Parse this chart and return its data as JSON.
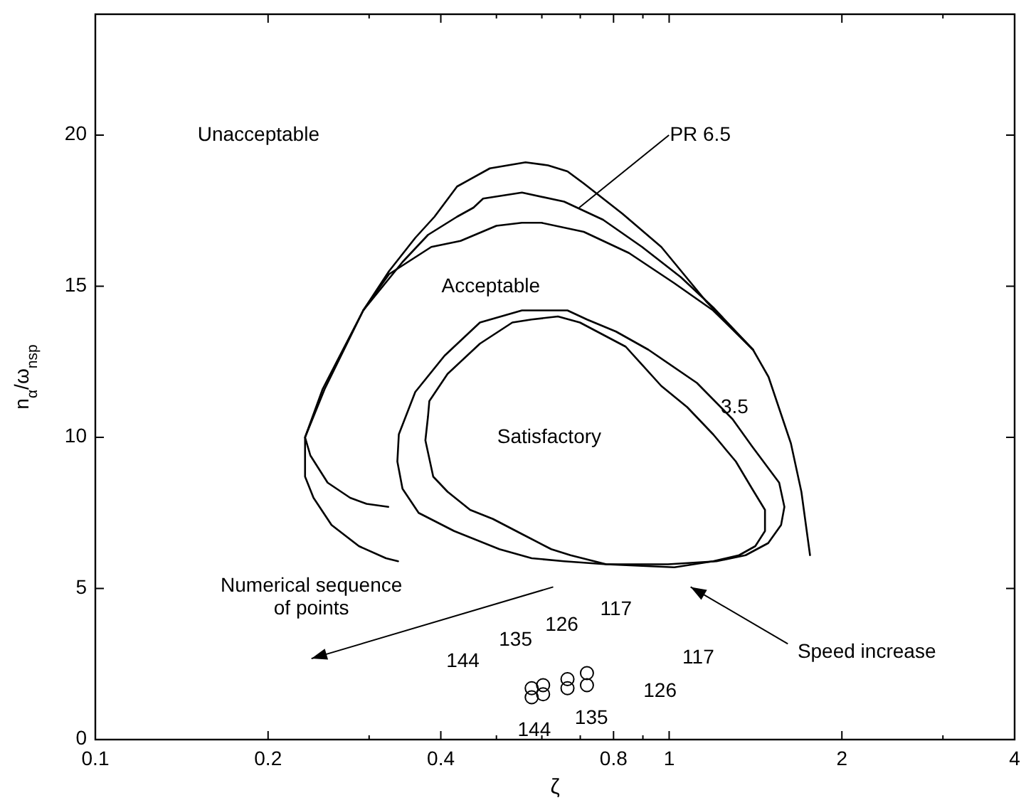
{
  "chart_data": {
    "type": "line",
    "xlabel": "ζ",
    "ylabel": "n$_{α}$/ω$_{n}$$_{sp}$",
    "log": "x",
    "xlim": [
      0.1,
      4
    ],
    "ylim": [
      0,
      24
    ],
    "xticks": [
      0.1,
      0.2,
      {
        "value": 0.3,
        "label": null
      },
      0.4,
      {
        "value": 0.5,
        "label": null
      },
      {
        "value": 0.6,
        "label": null
      },
      {
        "value": 0.7,
        "label": null
      },
      0.8,
      {
        "value": 0.9,
        "label": null
      },
      1,
      2,
      {
        "value": 3,
        "label": null
      },
      4
    ],
    "yticks": [
      0,
      5,
      10,
      15,
      20
    ],
    "grid": false,
    "series": [
      {
        "color": "#000000",
        "x": [
          0.337,
          0.321,
          0.288,
          0.258,
          0.24,
          0.232,
          0.232,
          0.249,
          0.293,
          0.325,
          0.361,
          0.39,
          0.427,
          0.487,
          0.562,
          0.615,
          0.665,
          0.71,
          0.829,
          0.969,
          1.16,
          1.4,
          1.49,
          1.63,
          1.7,
          1.76
        ],
        "values": [
          5.9,
          6.0,
          6.4,
          7.1,
          8.0,
          8.7,
          10.0,
          11.6,
          14.2,
          15.5,
          16.6,
          17.3,
          18.3,
          18.9,
          19.1,
          19.0,
          18.8,
          18.4,
          17.4,
          16.3,
          14.5,
          12.9,
          12.0,
          9.8,
          8.2,
          6.1
        ]
      },
      {
        "color": "#000000",
        "x": [
          0.324,
          0.297,
          0.278,
          0.254,
          0.237,
          0.232,
          0.251,
          0.293,
          0.343,
          0.38,
          0.427,
          0.456,
          0.474,
          0.554,
          0.656,
          0.767,
          0.897,
          1.048,
          1.193,
          1.4
        ],
        "values": [
          7.7,
          7.8,
          8.0,
          8.5,
          9.4,
          10.0,
          11.6,
          14.2,
          15.8,
          16.7,
          17.3,
          17.6,
          17.9,
          18.1,
          17.8,
          17.2,
          16.3,
          15.3,
          14.3,
          12.9
        ]
      },
      {
        "color": "#000000",
        "x": [
          0.293,
          0.325,
          0.385,
          0.433,
          0.5,
          0.554,
          0.599,
          0.71,
          0.851,
          1.021,
          1.193,
          1.4
        ],
        "values": [
          14.2,
          15.4,
          16.3,
          16.5,
          17.0,
          17.1,
          17.1,
          16.8,
          16.1,
          15.1,
          14.2,
          12.9
        ]
      },
      {
        "type": "scatter",
        "marker": "circle",
        "color": "#000000",
        "x": [
          0.576,
          0.576,
          0.603,
          0.603,
          0.665,
          0.665,
          0.719,
          0.719
        ],
        "values": [
          1.7,
          1.4,
          1.8,
          1.5,
          2.0,
          1.7,
          2.2,
          1.8
        ]
      }
    ],
    "annotations": [
      "Unacceptable",
      {
        "text": "PR 6.5",
        "x": 0.697,
        "y": 17.6
      },
      "Acceptable",
      "Satisfactory",
      "3.5",
      "Numerical sequence\nof points",
      "Speed increase",
      "117",
      "126",
      "135",
      "144",
      "117",
      "126",
      "135",
      "144"
    ]
  }
}
